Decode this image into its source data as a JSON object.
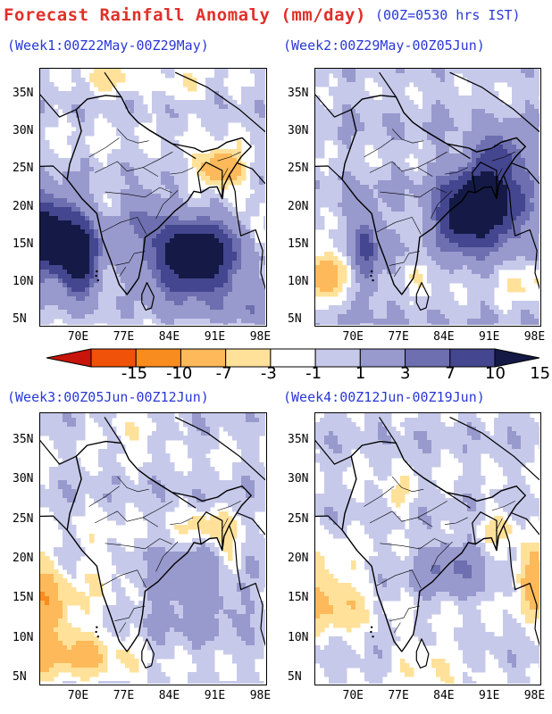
{
  "title": "Forecast Rainfall Anomaly (mm/day)",
  "subtitle": "(00Z=0530 hrs IST)",
  "panels": [
    {
      "title": "(Week1:00Z22May-00Z29May)"
    },
    {
      "title": "(Week2:00Z29May-00Z05Jun)"
    },
    {
      "title": "(Week3:00Z05Jun-00Z12Jun)"
    },
    {
      "title": "(Week4:00Z12Jun-00Z19Jun)"
    }
  ],
  "lat_labels": [
    "35N",
    "30N",
    "25N",
    "20N",
    "15N",
    "10N",
    "5N"
  ],
  "lon_labels": [
    "70E",
    "77E",
    "84E",
    "91E",
    "98E"
  ],
  "colorbar": {
    "labels": [
      "-15",
      "-10",
      "-7",
      "-3",
      "-1",
      "1",
      "3",
      "7",
      "10",
      "15"
    ],
    "colors": [
      "#c8140a",
      "#f0520a",
      "#f98c1e",
      "#fdb95a",
      "#ffe19a",
      "#ffffff",
      "#c7c9ea",
      "#9899cc",
      "#6d6fb0",
      "#44468f",
      "#141a45"
    ]
  }
}
